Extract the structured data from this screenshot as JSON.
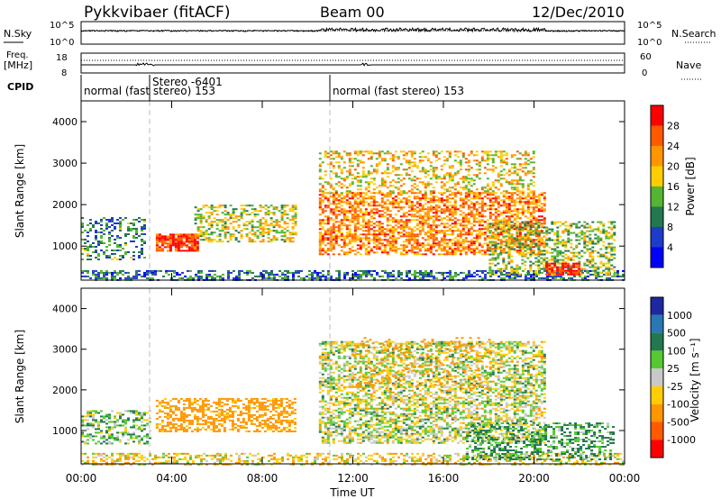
{
  "header": {
    "station": "Pykkvibaer (fitACF)",
    "beam": "Beam 00",
    "date": "12/Dec/2010"
  },
  "status_panels": {
    "nsky_label": "N.Sky",
    "nsearch_label": "N.Search",
    "freq_label_1": "Freq.",
    "freq_label_2": "[MHz]",
    "nave_label": "Nave",
    "cpid_label": "CPID",
    "nsky_ticks": [
      "10^5",
      "10^0"
    ],
    "nsearch_ticks": [
      "10^5",
      "10^0"
    ],
    "freq_ticks": [
      "18",
      "8"
    ],
    "nave_ticks": [
      "60",
      "0"
    ],
    "cpid_segments": [
      {
        "label": "normal (fast stereo) 153",
        "start_hour": 0.0
      },
      {
        "label": "Stereo -6401",
        "start_hour": 2.9,
        "upper": true
      },
      {
        "label": "normal (fast stereo) 153",
        "start_hour": 10.5
      }
    ]
  },
  "axes": {
    "ylabel": "Slant Range [km]",
    "xlabel": "Time UT",
    "xticks": [
      "00:00",
      "04:00",
      "08:00",
      "12:00",
      "16:00",
      "20:00",
      "00:00"
    ],
    "yticks": [
      "1000",
      "2000",
      "3000",
      "4000"
    ]
  },
  "colorbars": {
    "power": {
      "label": "Power [dB]",
      "ticks": [
        "28",
        "24",
        "20",
        "16",
        "12",
        "8",
        "4"
      ],
      "colors": [
        "#ff0000",
        "#ff5a00",
        "#ff9600",
        "#ffcd00",
        "#55b432",
        "#237850",
        "#1e3cc8",
        "#0000ff"
      ]
    },
    "velocity": {
      "label": "Velocity [m s⁻¹]",
      "ticks": [
        "1000",
        "500",
        "100",
        "25",
        "-25",
        "-100",
        "-500",
        "-1000"
      ],
      "colors": [
        "#1e28a0",
        "#2878b4",
        "#237850",
        "#55c832",
        "#c8c8c8",
        "#ffcd00",
        "#ff9600",
        "#ff5a00",
        "#ff0000"
      ]
    }
  },
  "chart_data": [
    {
      "type": "heatmap",
      "name": "power",
      "xlabel": "Time UT",
      "ylabel": "Slant Range [km]",
      "xlim_hours": [
        0,
        24
      ],
      "ylim_km": [
        180,
        4500
      ],
      "colorbar_label": "Power [dB]",
      "colorbar_range": [
        0,
        30
      ],
      "regions": [
        {
          "t0": 0.0,
          "t1": 24.0,
          "r0": 180,
          "r1": 420,
          "db": 8,
          "density": 0.55
        },
        {
          "t0": 0.0,
          "t1": 2.8,
          "r0": 700,
          "r1": 1700,
          "db": 10,
          "density": 0.35
        },
        {
          "t0": 3.3,
          "t1": 5.2,
          "r0": 900,
          "r1": 1300,
          "db": 26,
          "density": 0.85
        },
        {
          "t0": 5.0,
          "t1": 9.5,
          "r0": 1100,
          "r1": 2000,
          "db": 16,
          "density": 0.45
        },
        {
          "t0": 10.5,
          "t1": 20.5,
          "r0": 800,
          "r1": 2300,
          "db": 22,
          "density": 0.6
        },
        {
          "t0": 10.5,
          "t1": 20.0,
          "r0": 2300,
          "r1": 3300,
          "db": 18,
          "density": 0.35
        },
        {
          "t0": 18.0,
          "t1": 23.5,
          "r0": 300,
          "r1": 1600,
          "db": 14,
          "density": 0.45
        },
        {
          "t0": 20.5,
          "t1": 22.0,
          "r0": 300,
          "r1": 600,
          "db": 28,
          "density": 0.8
        }
      ]
    },
    {
      "type": "heatmap",
      "name": "velocity",
      "xlabel": "Time UT",
      "ylabel": "Slant Range [km]",
      "xlim_hours": [
        0,
        24
      ],
      "ylim_km": [
        180,
        4500
      ],
      "colorbar_label": "Velocity [m s⁻¹]",
      "colorbar_range": [
        -1000,
        1000
      ],
      "regions": [
        {
          "t0": 0.0,
          "t1": 24.0,
          "r0": 180,
          "r1": 450,
          "v": -60,
          "density": 0.45
        },
        {
          "t0": 0.0,
          "t1": 3.0,
          "r0": 700,
          "r1": 1500,
          "v": 60,
          "density": 0.45
        },
        {
          "t0": 3.3,
          "t1": 9.5,
          "r0": 1000,
          "r1": 1800,
          "v": -200,
          "density": 0.5
        },
        {
          "t0": 10.5,
          "t1": 20.5,
          "r0": 700,
          "r1": 3200,
          "v": 0,
          "density": 0.55
        },
        {
          "t0": 12.0,
          "t1": 18.0,
          "r0": 2000,
          "r1": 3300,
          "v": -300,
          "density": 0.12
        },
        {
          "t0": 17.0,
          "t1": 23.5,
          "r0": 300,
          "r1": 1200,
          "v": 120,
          "density": 0.45
        }
      ]
    }
  ]
}
